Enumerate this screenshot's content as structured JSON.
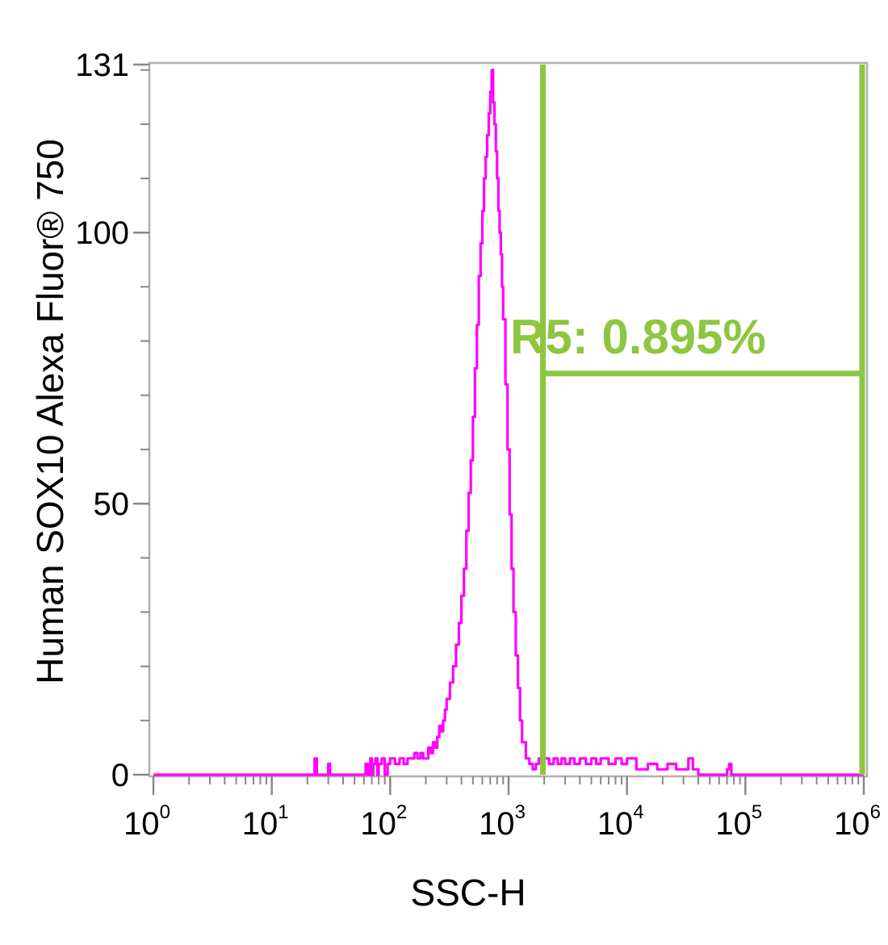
{
  "chart_data": {
    "type": "histogram",
    "title": "",
    "xlabel": "SSC-H",
    "ylabel": "Human SOX10 Alexa Fluor® 750",
    "x_scale": "log",
    "xlim": [
      1,
      1000000
    ],
    "ylim": [
      0,
      131
    ],
    "x_ticks": [
      {
        "value": 1,
        "base": "10",
        "exp": "0"
      },
      {
        "value": 10,
        "base": "10",
        "exp": "1"
      },
      {
        "value": 100,
        "base": "10",
        "exp": "2"
      },
      {
        "value": 1000,
        "base": "10",
        "exp": "3"
      },
      {
        "value": 10000,
        "base": "10",
        "exp": "4"
      },
      {
        "value": 100000,
        "base": "10",
        "exp": "5"
      },
      {
        "value": 1000000,
        "base": "10",
        "exp": "6"
      }
    ],
    "y_ticks": [
      {
        "value": 0,
        "label": "0"
      },
      {
        "value": 50,
        "label": "50"
      },
      {
        "value": 100,
        "label": "100"
      },
      {
        "value": 131,
        "label": "131"
      }
    ],
    "series": [
      {
        "color": "#ff00ff",
        "x": [
          1,
          20,
          22,
          23,
          24,
          28,
          30,
          31,
          32,
          60,
          62,
          65,
          68,
          70,
          72,
          75,
          78,
          80,
          85,
          90,
          95,
          100,
          110,
          120,
          130,
          140,
          150,
          160,
          170,
          180,
          190,
          200,
          210,
          220,
          230,
          240,
          250,
          260,
          270,
          280,
          290,
          300,
          320,
          340,
          360,
          380,
          400,
          420,
          440,
          460,
          480,
          500,
          520,
          540,
          560,
          580,
          600,
          620,
          640,
          660,
          680,
          700,
          720,
          740,
          760,
          780,
          800,
          820,
          840,
          860,
          880,
          900,
          940,
          980,
          1020,
          1060,
          1100,
          1150,
          1200,
          1250,
          1300,
          1400,
          1500,
          1600,
          1700,
          1800,
          1900,
          2000,
          2200,
          2400,
          2600,
          2800,
          3000,
          3300,
          3600,
          4000,
          4500,
          5000,
          5500,
          6000,
          7000,
          8000,
          9000,
          10000,
          12000,
          15000,
          18000,
          22000,
          26000,
          30000,
          33000,
          36000,
          40000,
          50000,
          60000,
          70000,
          73000,
          76000,
          80000,
          100000,
          1000000
        ],
        "y": [
          0,
          0,
          0,
          3,
          0,
          0,
          2,
          0,
          0,
          0,
          2,
          0,
          3,
          0,
          2,
          3,
          0,
          2,
          3,
          0,
          2,
          3,
          2,
          3,
          2,
          3,
          3,
          4,
          3,
          4,
          3,
          3,
          5,
          4,
          6,
          5,
          7,
          9,
          8,
          10,
          12,
          14,
          17,
          20,
          24,
          28,
          33,
          38,
          45,
          52,
          58,
          66,
          75,
          83,
          92,
          98,
          104,
          110,
          114,
          118,
          122,
          126,
          130,
          124,
          120,
          115,
          110,
          104,
          100,
          96,
          90,
          84,
          72,
          60,
          48,
          38,
          30,
          22,
          16,
          10,
          6,
          3,
          2,
          1,
          2,
          3,
          1,
          3,
          2,
          3,
          2,
          3,
          2,
          3,
          2,
          3,
          2,
          3,
          2,
          3,
          2,
          3,
          2,
          3,
          1,
          2,
          1,
          2,
          1,
          1,
          3,
          1,
          0,
          0,
          0,
          1,
          2,
          0,
          0,
          0,
          0
        ]
      }
    ],
    "gate": {
      "name": "R5",
      "label": "R5: 0.895%",
      "color": "#8dc63f",
      "x_start": 1950,
      "x_end": 1000000,
      "y_level": 74
    }
  }
}
